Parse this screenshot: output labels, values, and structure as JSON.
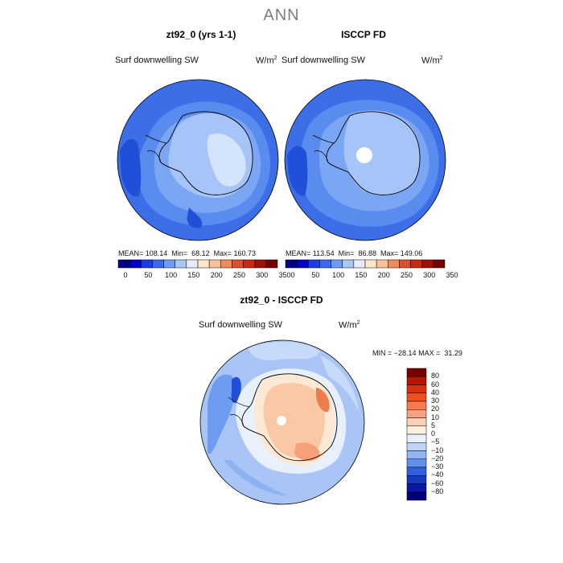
{
  "season": "ANN",
  "panels": [
    {
      "title": "zt92_0 (yrs 1-1)",
      "variable": "Surf downwelling SW",
      "units": "W/m",
      "units_exp": "2",
      "stats": {
        "mean_label": "MEAN=",
        "mean": "108.14",
        "min_label": "Min=",
        "min": "68.12",
        "max_label": "Max=",
        "max": "160.73"
      }
    },
    {
      "title": "ISCCP FD",
      "variable": "Surf downwelling SW",
      "units": "W/m",
      "units_exp": "2",
      "stats": {
        "mean_label": "MEAN=",
        "mean": "113.54",
        "min_label": "Min=",
        "min": "86.88",
        "max_label": "Max=",
        "max": "149.06"
      }
    },
    {
      "title": "zt92_0 - ISCCP FD",
      "variable": "Surf downwelling SW",
      "units": "W/m",
      "units_exp": "2",
      "minmax": {
        "min_label": "MIN =",
        "min": "−28.14",
        "max_label": "MAX =",
        "max": "31.29"
      }
    }
  ],
  "abs_colorbar": {
    "colors": [
      "#000080",
      "#0000c8",
      "#1e3ce6",
      "#3a6af0",
      "#6d9cf4",
      "#a8c8f8",
      "#e4eefc",
      "#fde4cc",
      "#fac098",
      "#f08c5a",
      "#e0502c",
      "#c82814",
      "#a01000",
      "#780000"
    ],
    "labels": [
      "0",
      "50",
      "100",
      "150",
      "200",
      "250",
      "300",
      "350"
    ]
  },
  "diff_colorbar": {
    "colors": [
      "#780000",
      "#b01800",
      "#d83010",
      "#f05020",
      "#f87850",
      "#f8a080",
      "#fcd0b8",
      "#fdf0e0",
      "#e8f0fc",
      "#c0d4f8",
      "#90b4f4",
      "#6090ec",
      "#3060e0",
      "#1838c0",
      "#0818a0",
      "#000078"
    ],
    "labels": [
      "80",
      "60",
      "40",
      "30",
      "20",
      "10",
      "5",
      "0",
      "−5",
      "−10",
      "−20",
      "−30",
      "−40",
      "−60",
      "−80"
    ]
  }
}
